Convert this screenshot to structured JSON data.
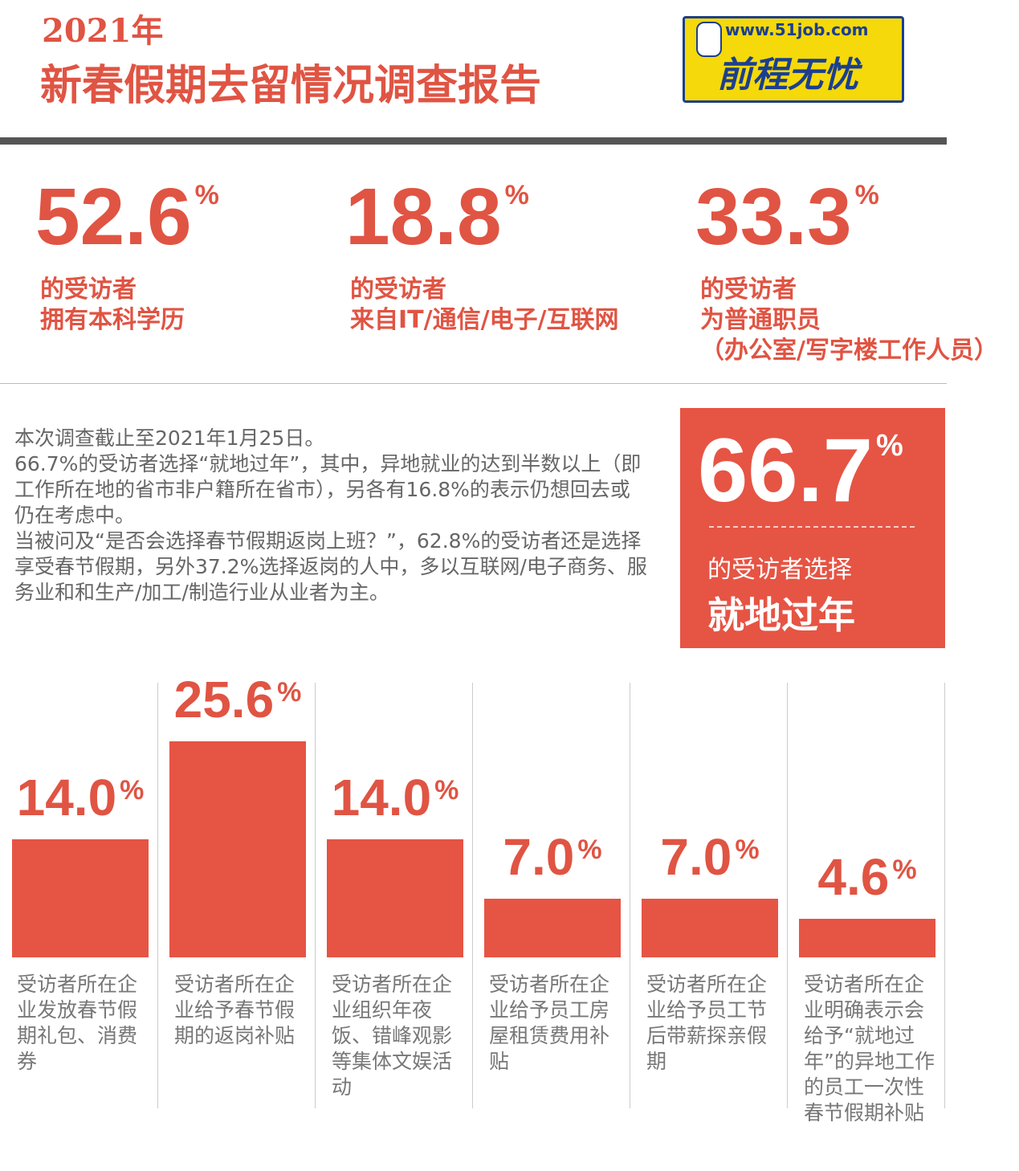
{
  "header": {
    "year": "2021年",
    "title": "新春假期去留情况调查报告"
  },
  "logo": {
    "url": "www.51job.com",
    "name": "前程无忧"
  },
  "stats": [
    {
      "value": 52.6,
      "unit": "%",
      "lines": [
        "的受访者",
        "拥有本科学历"
      ]
    },
    {
      "value": 18.8,
      "unit": "%",
      "lines": [
        "的受访者",
        "来自IT/通信/电子/互联网"
      ]
    },
    {
      "value": 33.3,
      "unit": "%",
      "lines": [
        "的受访者",
        "为普通职员",
        "（办公室/写字楼工作人员）"
      ]
    }
  ],
  "paragraphs": [
    "本次调查截止至2021年1月25日。",
    "66.7%的受访者选择“就地过年”，其中，异地就业的达到半数以上（即工作所在地的省市非户籍所在省市），另各有16.8%的表示仍想回去或仍在考虑中。",
    "当被问及“是否会选择春节假期返岗上班？”，62.8%的受访者还是选择享受春节假期，另外37.2%选择返岗的人中，多以互联网/电子商务、服务业和和生产/加工/制造行业从业者为主。"
  ],
  "highlight": {
    "value": 66.7,
    "unit": "%",
    "caption": "的受访者选择",
    "emphasis": "就地过年"
  },
  "chart_data": {
    "type": "bar",
    "categories": [
      "受访者所在企业发放春节假期礼包、消费券",
      "受访者所在企业给予春节假期的返岗补贴",
      "受访者所在企业组织年夜饭、错峰观影等集体文娱活动",
      "受访者所在企业给予员工房屋租赁费用补贴",
      "受访者所在企业给予员工节后带薪探亲假期",
      "受访者所在企业明确表示会给予“就地过年”的异地工作的员工一次性春节假期补贴"
    ],
    "values": [
      14.0,
      25.6,
      14.0,
      7.0,
      7.0,
      4.6
    ],
    "value_labels": [
      "14.0",
      "25.6",
      "14.0",
      "7.0",
      "7.0",
      "4.6"
    ],
    "unit": "%",
    "color": "#e65444"
  }
}
